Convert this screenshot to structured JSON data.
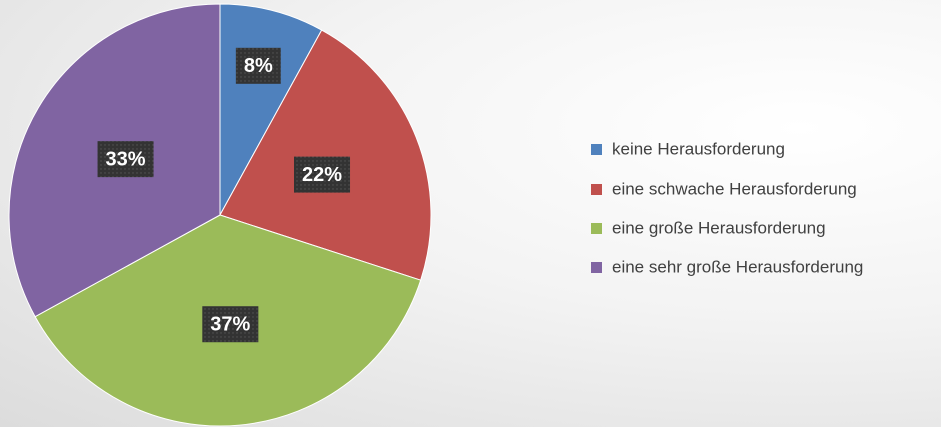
{
  "chart_data": {
    "type": "pie",
    "categories": [
      "keine Herausforderung",
      "eine schwache Herausforderung",
      "eine große Herausforderung",
      "eine sehr große Herausforderung"
    ],
    "values": [
      8,
      22,
      37,
      33
    ],
    "value_labels": [
      "8%",
      "22%",
      "37%",
      "33%"
    ],
    "colors": [
      "#4f81bd",
      "#c0504d",
      "#9bbb59",
      "#8064a2"
    ],
    "legend": "right"
  }
}
